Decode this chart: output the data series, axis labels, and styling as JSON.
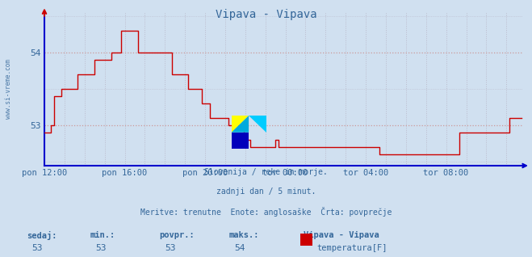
{
  "title": "Vipava - Vipava",
  "bg_color": "#d0e0f0",
  "plot_bg_color": "#d0e0f0",
  "line_color": "#cc0000",
  "axis_color": "#0000cc",
  "grid_color_h": "#cc9999",
  "grid_color_v": "#bbbbcc",
  "text_color": "#336699",
  "ylabel_text": "www.si-vreme.com",
  "x_tick_labels": [
    "pon 12:00",
    "pon 16:00",
    "pon 20:00",
    "tor 00:00",
    "tor 04:00",
    "tor 08:00"
  ],
  "x_tick_positions": [
    0,
    48,
    96,
    144,
    192,
    240
  ],
  "ylim": [
    52.45,
    54.55
  ],
  "yticks": [
    53,
    54
  ],
  "subtitle_lines": [
    "Slovenija / reke in morje.",
    "zadnji dan / 5 minut.",
    "Meritve: trenutne  Enote: anglosaške  Črta: povprečje"
  ],
  "footer_labels": [
    "sedaj:",
    "min.:",
    "povpr.:",
    "maks.:"
  ],
  "footer_values": [
    "53",
    "53",
    "53",
    "54"
  ],
  "footer_series_name": "Vipava - Vipava",
  "footer_series_label": "temperatura[F]",
  "footer_series_color": "#cc0000",
  "data": [
    52.9,
    52.9,
    52.9,
    52.9,
    53.0,
    53.0,
    53.4,
    53.4,
    53.4,
    53.4,
    53.5,
    53.5,
    53.5,
    53.5,
    53.5,
    53.5,
    53.5,
    53.5,
    53.5,
    53.5,
    53.7,
    53.7,
    53.7,
    53.7,
    53.7,
    53.7,
    53.7,
    53.7,
    53.7,
    53.7,
    53.9,
    53.9,
    53.9,
    53.9,
    53.9,
    53.9,
    53.9,
    53.9,
    53.9,
    53.9,
    54.0,
    54.0,
    54.0,
    54.0,
    54.0,
    54.0,
    54.3,
    54.3,
    54.3,
    54.3,
    54.3,
    54.3,
    54.3,
    54.3,
    54.3,
    54.3,
    54.0,
    54.0,
    54.0,
    54.0,
    54.0,
    54.0,
    54.0,
    54.0,
    54.0,
    54.0,
    54.0,
    54.0,
    54.0,
    54.0,
    54.0,
    54.0,
    54.0,
    54.0,
    54.0,
    54.0,
    53.7,
    53.7,
    53.7,
    53.7,
    53.7,
    53.7,
    53.7,
    53.7,
    53.7,
    53.7,
    53.5,
    53.5,
    53.5,
    53.5,
    53.5,
    53.5,
    53.5,
    53.5,
    53.3,
    53.3,
    53.3,
    53.3,
    53.3,
    53.1,
    53.1,
    53.1,
    53.1,
    53.1,
    53.1,
    53.1,
    53.1,
    53.1,
    53.1,
    53.1,
    53.0,
    53.0,
    53.0,
    53.0,
    53.0,
    53.0,
    53.0,
    53.0,
    53.0,
    52.8,
    52.8,
    52.8,
    52.8,
    52.7,
    52.7,
    52.7,
    52.7,
    52.7,
    52.7,
    52.7,
    52.7,
    52.7,
    52.7,
    52.7,
    52.7,
    52.7,
    52.7,
    52.7,
    52.8,
    52.8,
    52.7,
    52.7,
    52.7,
    52.7,
    52.7,
    52.7,
    52.7,
    52.7,
    52.7,
    52.7,
    52.7,
    52.7,
    52.7,
    52.7,
    52.7,
    52.7,
    52.7,
    52.7,
    52.7,
    52.7,
    52.7,
    52.7,
    52.7,
    52.7,
    52.7,
    52.7,
    52.7,
    52.7,
    52.7,
    52.7,
    52.7,
    52.7,
    52.7,
    52.7,
    52.7,
    52.7,
    52.7,
    52.7,
    52.7,
    52.7,
    52.7,
    52.7,
    52.7,
    52.7,
    52.7,
    52.7,
    52.7,
    52.7,
    52.7,
    52.7,
    52.7,
    52.7,
    52.7,
    52.7,
    52.7,
    52.7,
    52.7,
    52.7,
    52.7,
    52.7,
    52.6,
    52.6,
    52.6,
    52.6,
    52.6,
    52.6,
    52.6,
    52.6,
    52.6,
    52.6,
    52.6,
    52.6,
    52.6,
    52.6,
    52.6,
    52.6,
    52.6,
    52.6,
    52.6,
    52.6,
    52.6,
    52.6,
    52.6,
    52.6,
    52.6,
    52.6,
    52.6,
    52.6,
    52.6,
    52.6,
    52.6,
    52.6,
    52.6,
    52.6,
    52.6,
    52.6,
    52.6,
    52.6,
    52.6,
    52.6,
    52.6,
    52.6,
    52.6,
    52.6,
    52.6,
    52.6,
    52.6,
    52.6,
    52.9,
    52.9,
    52.9,
    52.9,
    52.9,
    52.9,
    52.9,
    52.9,
    52.9,
    52.9,
    52.9,
    52.9,
    52.9,
    52.9,
    52.9,
    52.9,
    52.9,
    52.9,
    52.9,
    52.9,
    52.9,
    52.9,
    52.9,
    52.9,
    52.9,
    52.9,
    52.9,
    52.9,
    52.9,
    52.9,
    53.1,
    53.1,
    53.1,
    53.1,
    53.1,
    53.1,
    53.1,
    53.1
  ]
}
